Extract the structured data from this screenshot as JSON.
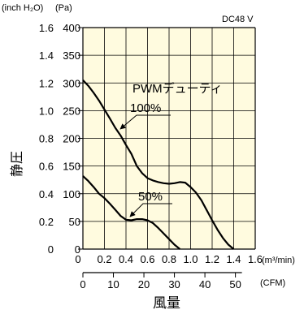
{
  "chart_data": {
    "type": "line",
    "units_top_left": [
      "(inch H₂O)",
      "(Pa)"
    ],
    "subtitle": "DC48 V",
    "ylabel": "静圧",
    "xlabel": "風量",
    "x_primary": {
      "unit": "(m³/min)",
      "ticks": [
        "0",
        "0.2",
        "0.4",
        "0.6",
        "0.8",
        "1.0",
        "1.2",
        "1.4",
        "1.6"
      ],
      "range": [
        0,
        1.6
      ]
    },
    "x_secondary": {
      "unit": "(CFM)",
      "ticks": [
        "0",
        "10",
        "20",
        "30",
        "40",
        "50"
      ],
      "range": [
        0,
        56.5
      ]
    },
    "y_primary": {
      "unit": "(Pa)",
      "ticks": [
        "0",
        "50",
        "100",
        "150",
        "200",
        "250",
        "300",
        "350",
        "400"
      ],
      "range": [
        0,
        400
      ]
    },
    "y_secondary": {
      "unit": "(inch H₂O)",
      "ticks": [
        "0",
        "0.2",
        "0.4",
        "0.6",
        "0.8",
        "1.0",
        "1.2",
        "1.4",
        "1.6"
      ],
      "range": [
        0,
        1.6
      ]
    },
    "grid": true,
    "background_color": "#fffbdf",
    "line_color": "#000000",
    "legend_title": "PWMデューティ",
    "series": [
      {
        "name": "100%",
        "x": [
          0,
          0.05,
          0.1,
          0.15,
          0.2,
          0.25,
          0.3,
          0.35,
          0.4,
          0.45,
          0.5,
          0.55,
          0.6,
          0.65,
          0.7,
          0.75,
          0.8,
          0.85,
          0.9,
          0.95,
          1.0,
          1.05,
          1.1,
          1.15,
          1.2,
          1.25,
          1.3,
          1.35,
          1.4
        ],
        "y": [
          305,
          295,
          282,
          268,
          252,
          236,
          219,
          205,
          188,
          172,
          150,
          137,
          128,
          124,
          121,
          119,
          118,
          119,
          121,
          120,
          112,
          102,
          88,
          70,
          52,
          35,
          20,
          8,
          0
        ]
      },
      {
        "name": "50%",
        "x": [
          0,
          0.05,
          0.1,
          0.15,
          0.2,
          0.25,
          0.3,
          0.35,
          0.4,
          0.45,
          0.5,
          0.55,
          0.6,
          0.65,
          0.7,
          0.75,
          0.8,
          0.85,
          0.9
        ],
        "y": [
          132,
          123,
          112,
          100,
          92,
          82,
          71,
          60,
          53,
          52,
          54,
          54,
          52,
          47,
          38,
          28,
          18,
          8,
          0
        ]
      }
    ]
  }
}
